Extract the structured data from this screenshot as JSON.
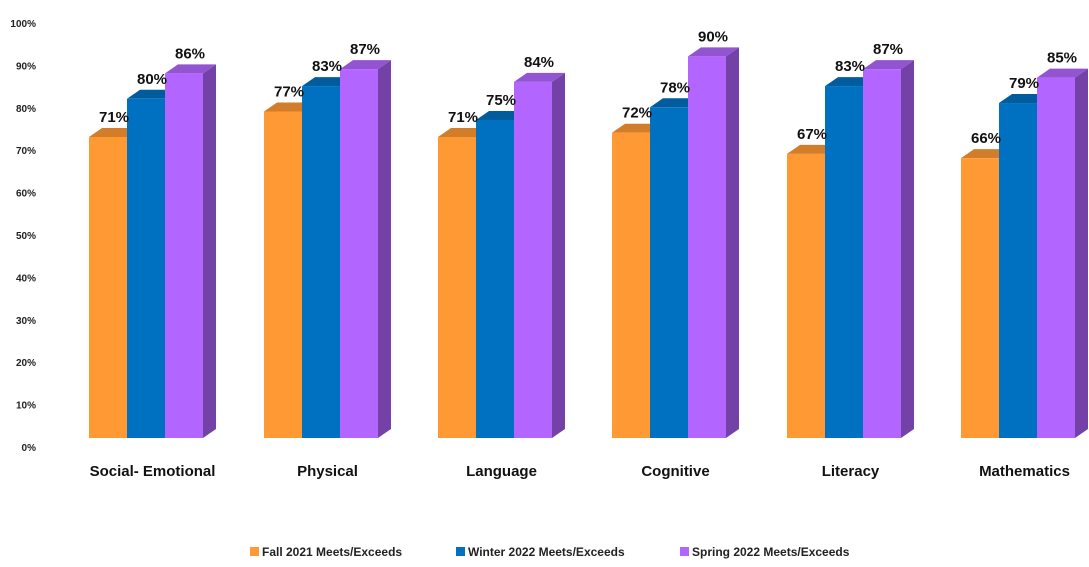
{
  "chart_data": {
    "type": "bar",
    "style": "3d-clustered-column",
    "categories": [
      "Social- Emotional",
      "Physical",
      "Language",
      "Cognitive",
      "Literacy",
      "Mathematics"
    ],
    "series": [
      {
        "name": "Fall 2021 Meets/Exceeds",
        "color": "#FF9933",
        "values": [
          71,
          77,
          71,
          72,
          67,
          66
        ],
        "labels": [
          "71%",
          "77%",
          "71%",
          "72%",
          "67%",
          "66%"
        ]
      },
      {
        "name": "Winter 2022 Meets/Exceeds",
        "color": "#0070C0",
        "values": [
          80,
          83,
          75,
          78,
          83,
          79
        ],
        "labels": [
          "80%",
          "83%",
          "75%",
          "78%",
          "83%",
          "79%"
        ]
      },
      {
        "name": "Spring 2022 Meets/Exceeds",
        "color": "#B266FF",
        "values": [
          86,
          87,
          84,
          90,
          87,
          85
        ],
        "labels": [
          "86%",
          "87%",
          "84%",
          "90%",
          "87%",
          "85%"
        ]
      }
    ],
    "ylim": [
      0,
      100
    ],
    "yticks": [
      "0%",
      "10%",
      "20%",
      "30%",
      "40%",
      "50%",
      "60%",
      "70%",
      "80%",
      "90%",
      "100%"
    ],
    "grid": false,
    "legend_position": "bottom"
  }
}
